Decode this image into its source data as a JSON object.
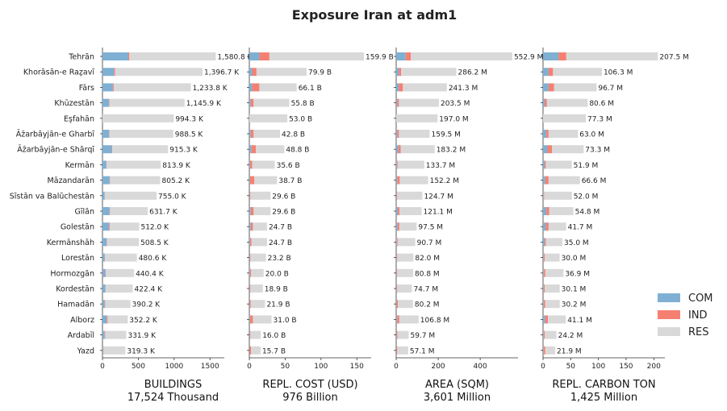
{
  "chart_data": {
    "type": "bar",
    "title": "Exposure Iran at adm1",
    "categories": [
      "Tehrān",
      "Khorāsān-e Raẕavī",
      "Fārs",
      "Khūzestān",
      "Eşfahān",
      "Āz̄arbāyjān-e Gharbī",
      "Āz̄arbāyjān-e Shārqī",
      "Kermān",
      "Māzandarān",
      "Sīstān va Balūchestān",
      "Gīlān",
      "Golestān",
      "Kermānshāh",
      "Lorestān",
      "Hormozgān",
      "Kordestān",
      "Hamadān",
      "Alborz",
      "Ardabīl",
      "Yazd"
    ],
    "legend": [
      {
        "name": "COM",
        "color": "#7fb0d3"
      },
      {
        "name": "IND",
        "color": "#f58071"
      },
      {
        "name": "RES",
        "color": "#d9d9d9"
      }
    ],
    "legend_position": "right",
    "panels": [
      {
        "xlabel": "BUILDINGS",
        "total": "17,524 Thousand",
        "xlim": [
          0,
          1700
        ],
        "xticks": [
          "0",
          "500",
          "1000",
          "1500"
        ],
        "xtick_values": [
          0,
          500,
          1000,
          1500
        ],
        "series": [
          {
            "name": "COM",
            "values": [
              360,
              160,
              145,
              90,
              0,
              90,
              130,
              55,
              100,
              30,
              100,
              90,
              60,
              30,
              40,
              40,
              30,
              60,
              30,
              10
            ]
          },
          {
            "name": "IND",
            "values": [
              15,
              15,
              12,
              5,
              0,
              5,
              5,
              3,
              5,
              2,
              5,
              10,
              5,
              5,
              5,
              3,
              8,
              12,
              8,
              5
            ]
          },
          {
            "name": "RES",
            "values": [
              1205.8,
              1221.7,
              1076.8,
              1050.9,
              994.3,
              893.5,
              780.3,
              755.9,
              700.2,
              723.0,
              526.7,
              412.0,
              443.5,
              445.6,
              395.4,
              379.4,
              352.2,
              280.2,
              293.9,
              304.3
            ]
          },
          {
            "name": "Total",
            "values": [
              1580.8,
              1396.7,
              1233.8,
              1145.9,
              994.3,
              988.5,
              915.3,
              813.9,
              805.2,
              755.0,
              631.7,
              512.0,
              508.5,
              480.6,
              440.4,
              422.4,
              390.2,
              352.2,
              331.9,
              319.3
            ]
          }
        ],
        "labels": [
          "1,580.8 K",
          "1,396.7 K",
          "1,233.8 K",
          "1,145.9 K",
          "994.3 K",
          "988.5 K",
          "915.3 K",
          "813.9 K",
          "805.2 K",
          "755.0 K",
          "631.7 K",
          "512.0 K",
          "508.5 K",
          "480.6 K",
          "440.4 K",
          "422.4 K",
          "390.2 K",
          "352.2 K",
          "331.9 K",
          "319.3 K"
        ]
      },
      {
        "xlabel": "REPL. COST (USD)",
        "total": "976 Billion",
        "xlim": [
          0,
          170
        ],
        "xticks": [
          "0",
          "50",
          "100",
          "150"
        ],
        "xtick_values": [
          0,
          50,
          100,
          150
        ],
        "series": [
          {
            "name": "COM",
            "values": [
              14,
              4,
              4,
              2,
              0,
              2,
              3,
              1,
              1,
              0.5,
              2,
              2,
              1,
              0.5,
              0.8,
              0.5,
              0.5,
              1,
              0.5,
              0.3
            ]
          },
          {
            "name": "IND",
            "values": [
              14,
              6,
              10,
              4,
              0,
              4,
              6,
              3,
              6,
              1,
              4,
              3,
              2,
              1,
              1.5,
              1,
              1.5,
              4,
              1,
              2
            ]
          },
          {
            "name": "RES",
            "values": [
              131.9,
              69.9,
              52.1,
              49.8,
              53.0,
              36.8,
              39.8,
              31.6,
              31.7,
              28.1,
              23.6,
              19.7,
              21.7,
              21.7,
              17.7,
              17.4,
              19.9,
              26.0,
              14.5,
              13.4
            ]
          },
          {
            "name": "Total",
            "values": [
              159.9,
              79.9,
              66.1,
              55.8,
              53.0,
              42.8,
              48.8,
              35.6,
              38.7,
              29.6,
              29.6,
              24.7,
              24.7,
              23.2,
              20.0,
              18.9,
              21.9,
              31.0,
              16.0,
              15.7
            ]
          }
        ],
        "labels": [
          "159.9 B",
          "79.9 B",
          "66.1 B",
          "55.8 B",
          "53.0 B",
          "42.8 B",
          "48.8 B",
          "35.6 B",
          "38.7 B",
          "29.6 B",
          "29.6 B",
          "24.7 B",
          "24.7 B",
          "23.2 B",
          "20.0 B",
          "18.9 B",
          "21.9 B",
          "31.0 B",
          "16.0 B",
          "15.7 B"
        ]
      },
      {
        "xlabel": "AREA (SQM)",
        "total": "3,601 Million",
        "xlim": [
          0,
          580
        ],
        "xticks": [
          "0",
          "200",
          "400"
        ],
        "xtick_values": [
          0,
          200,
          400
        ],
        "series": [
          {
            "name": "COM",
            "values": [
              45,
              12,
              12,
              5,
              0,
              5,
              10,
              3,
              5,
              2,
              8,
              7,
              3,
              2,
              2,
              2,
              2,
              5,
              2,
              1
            ]
          },
          {
            "name": "IND",
            "values": [
              25,
              12,
              20,
              8,
              0,
              8,
              12,
              4,
              12,
              3,
              8,
              8,
              4,
              3,
              3,
              3,
              6,
              10,
              4,
              4
            ]
          },
          {
            "name": "RES",
            "values": [
              482.9,
              262.2,
              209.3,
              190.5,
              197.0,
              146.5,
              161.2,
              126.7,
              135.2,
              119.7,
              105.1,
              82.5,
              83.7,
              77.0,
              75.8,
              69.7,
              72.2,
              91.8,
              53.7,
              52.1
            ]
          },
          {
            "name": "Total",
            "values": [
              552.9,
              286.2,
              241.3,
              203.5,
              197.0,
              159.5,
              183.2,
              133.7,
              152.2,
              124.7,
              121.1,
              97.5,
              90.7,
              82.0,
              80.8,
              74.7,
              80.2,
              106.8,
              59.7,
              57.1
            ]
          }
        ],
        "labels": [
          "552.9 M",
          "286.2 M",
          "241.3 M",
          "203.5 M",
          "197.0 M",
          "159.5 M",
          "183.2 M",
          "133.7 M",
          "152.2 M",
          "124.7 M",
          "121.1 M",
          "97.5 M",
          "90.7 M",
          "82.0 M",
          "80.8 M",
          "74.7 M",
          "80.2 M",
          "106.8 M",
          "59.7 M",
          "57.1 M"
        ]
      },
      {
        "xlabel": "REPL. CARBON TON",
        "total": "1,425 Million",
        "xlim": [
          0,
          220
        ],
        "xticks": [
          "0",
          "50",
          "100",
          "150",
          "200"
        ],
        "xtick_values": [
          0,
          50,
          100,
          150,
          200
        ],
        "series": [
          {
            "name": "COM",
            "values": [
              28,
              10,
              10,
              3,
              0,
              6,
              8,
              3,
              4,
              1,
              6,
              5,
              3,
              1,
              1,
              1,
              1,
              4,
              1,
              1
            ]
          },
          {
            "name": "IND",
            "values": [
              14,
              8,
              10,
              4,
              0,
              4,
              8,
              2,
              6,
              1,
              5,
              5,
              2,
              2,
              3,
              2,
              3,
              5,
              2,
              3
            ]
          },
          {
            "name": "RES",
            "values": [
              165.5,
              88.3,
              76.7,
              73.6,
              77.3,
              53.0,
              57.3,
              46.9,
              56.6,
              50.0,
              43.8,
              31.7,
              30.0,
              27.0,
              32.9,
              27.1,
              26.2,
              32.1,
              21.2,
              17.9
            ]
          },
          {
            "name": "Total",
            "values": [
              207.5,
              106.3,
              96.7,
              80.6,
              77.3,
              63.0,
              73.3,
              51.9,
              66.6,
              52.0,
              54.8,
              41.7,
              35.0,
              30.0,
              36.9,
              30.1,
              30.2,
              41.1,
              24.2,
              21.9
            ]
          }
        ],
        "labels": [
          "207.5 M",
          "106.3 M",
          "96.7 M",
          "80.6 M",
          "77.3 M",
          "63.0 M",
          "73.3 M",
          "51.9 M",
          "66.6 M",
          "52.0 M",
          "54.8 M",
          "41.7 M",
          "35.0 M",
          "30.0 M",
          "36.9 M",
          "30.1 M",
          "30.2 M",
          "41.1 M",
          "24.2 M",
          "21.9 M"
        ]
      }
    ]
  }
}
